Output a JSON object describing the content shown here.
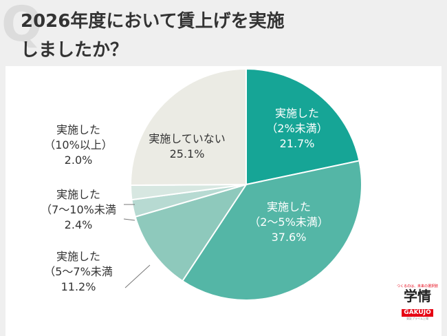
{
  "header": {
    "title_line1": "2026年度において賃上げを実施",
    "title_line2": "しましたか？"
  },
  "chart_data": {
    "type": "pie",
    "title": "2026年度において賃上げを実施しましたか？",
    "start": "12 o'clock, clockwise",
    "slices": [
      {
        "label_lines": [
          "実施した",
          "（2%未満）"
        ],
        "value": 21.7,
        "value_text": "21.7%",
        "color": "#16a596",
        "label_placement": "inside"
      },
      {
        "label_lines": [
          "実施した",
          "（2〜5%未満）"
        ],
        "value": 37.6,
        "value_text": "37.6%",
        "color": "#54b6a6",
        "label_placement": "inside"
      },
      {
        "label_lines": [
          "実施した",
          "（5〜7%未満"
        ],
        "value": 11.2,
        "value_text": "11.2%",
        "color": "#8ec9bc",
        "label_placement": "outside-left"
      },
      {
        "label_lines": [
          "実施した",
          "（7〜10%未満"
        ],
        "value": 2.4,
        "value_text": "2.4%",
        "color": "#b7dad2",
        "label_placement": "outside-left"
      },
      {
        "label_lines": [
          "実施した",
          "（10%以上）"
        ],
        "value": 2.0,
        "value_text": "2.0%",
        "color": "#d7e7e1",
        "label_placement": "outside-left"
      },
      {
        "label_lines": [
          "実施していない"
        ],
        "value": 25.1,
        "value_text": "25.1%",
        "color": "#ebebe4",
        "label_placement": "inside"
      }
    ]
  },
  "logo": {
    "tagline": "つくるのは、未来の選択肢",
    "brand": "学情",
    "brand_en": "GAKUJO",
    "sub": "東証プライム上場"
  }
}
